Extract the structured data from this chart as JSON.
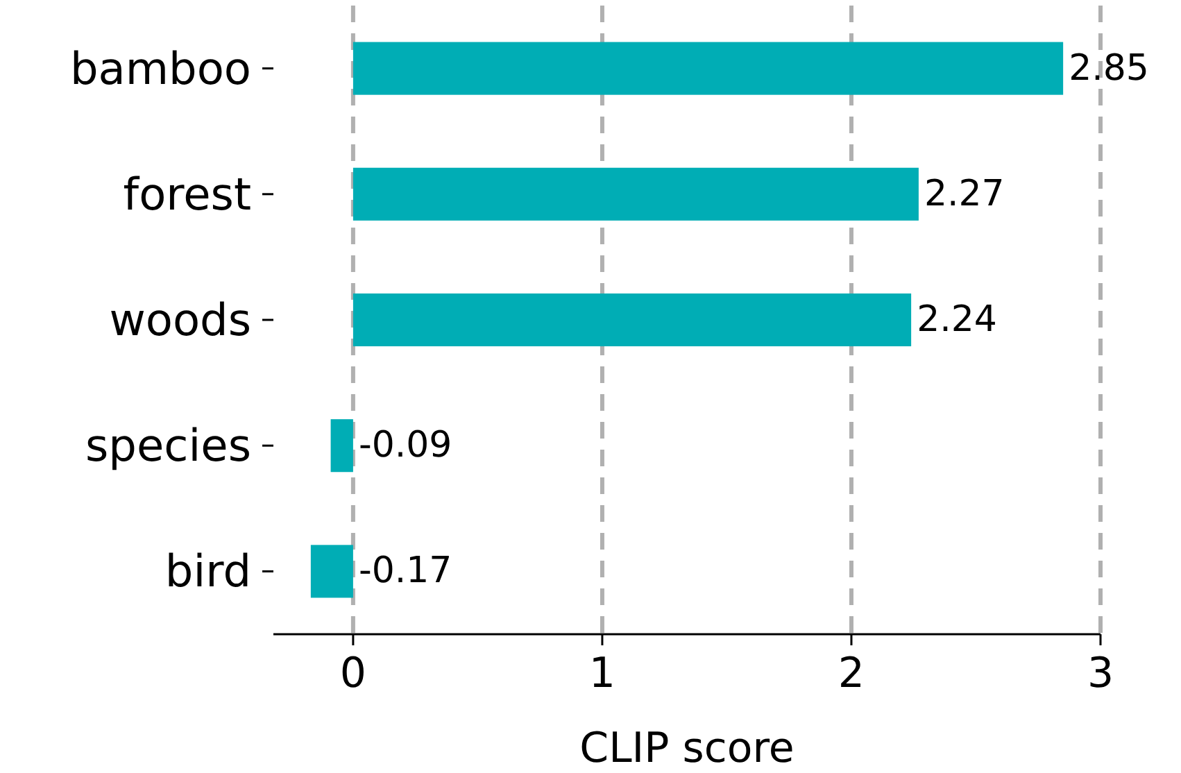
{
  "chart_data": {
    "type": "bar",
    "orientation": "horizontal",
    "xlabel": "CLIP score",
    "categories": [
      "bamboo",
      "forest",
      "woods",
      "species",
      "bird"
    ],
    "values": [
      2.85,
      2.27,
      2.24,
      -0.09,
      -0.17
    ],
    "color": "#00adb5",
    "xlim": [
      -0.32,
      3.0
    ],
    "xticks": [
      0,
      1,
      2,
      3
    ],
    "grid": "x",
    "data_labels": true
  }
}
